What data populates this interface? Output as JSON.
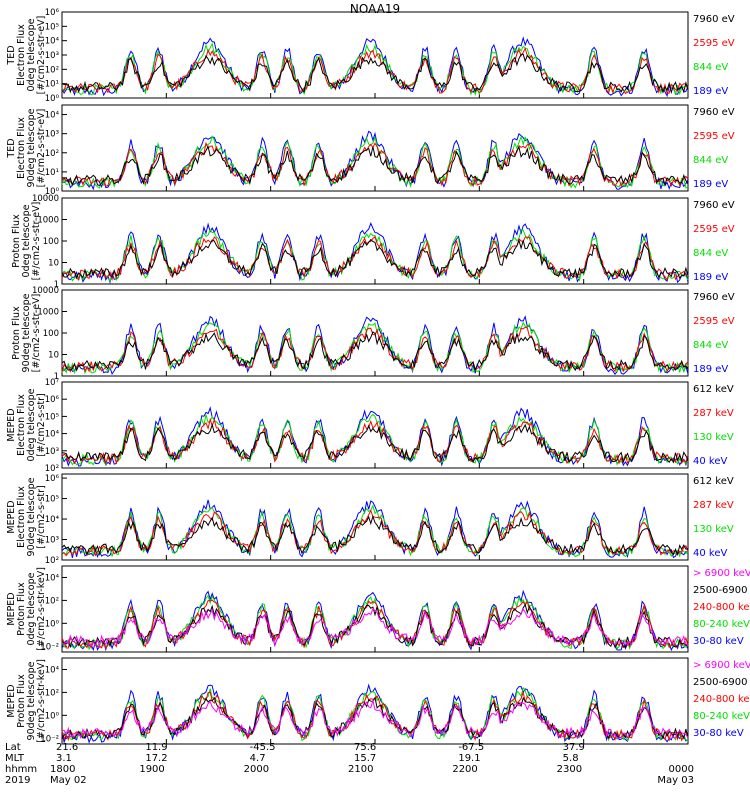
{
  "title": "NOAA19",
  "colors": {
    "black": "#000000",
    "red": "#ff0000",
    "green": "#00e000",
    "blue": "#0000ff",
    "magenta": "#ff00ff"
  },
  "panels": [
    {
      "ylabel_lines": [
        "TED",
        "Electron Flux",
        "0deg telescope",
        "[#/cm2-s-str-eV]"
      ],
      "scale": "log",
      "ticks": [
        {
          "v": 0,
          "t": "10⁰"
        },
        {
          "v": 1,
          "t": "10¹"
        },
        {
          "v": 2,
          "t": "10²"
        },
        {
          "v": 3,
          "t": "10³"
        },
        {
          "v": 4,
          "t": "10⁴"
        },
        {
          "v": 5,
          "t": "10⁵"
        },
        {
          "v": 6,
          "t": "10⁶"
        }
      ],
      "legend": [
        {
          "label": "7960 eV",
          "color": "black"
        },
        {
          "label": "2595 eV",
          "color": "red"
        },
        {
          "label": "844 eV",
          "color": "green"
        },
        {
          "label": "189 eV",
          "color": "blue"
        }
      ]
    },
    {
      "ylabel_lines": [
        "TED",
        "Electron Flux",
        "90deg telescope",
        "[#/cm2-s-str-eV]"
      ],
      "scale": "log",
      "ticks": [
        {
          "v": 0,
          "t": "10⁰"
        },
        {
          "v": 1,
          "t": "10¹"
        },
        {
          "v": 2,
          "t": "10²"
        },
        {
          "v": 3,
          "t": "10³"
        },
        {
          "v": 4,
          "t": "10⁴"
        }
      ],
      "legend": [
        {
          "label": "7960 eV",
          "color": "black"
        },
        {
          "label": "2595 eV",
          "color": "red"
        },
        {
          "label": "844 eV",
          "color": "green"
        },
        {
          "label": "189 eV",
          "color": "blue"
        }
      ]
    },
    {
      "ylabel_lines": [
        "Proton Flux",
        "0deg telescope",
        "[#/cm2-s-str-eV]"
      ],
      "scale": "log",
      "ticks": [
        {
          "v": 0,
          "t": "1"
        },
        {
          "v": 1,
          "t": "10"
        },
        {
          "v": 2,
          "t": "100"
        },
        {
          "v": 3,
          "t": "1000"
        },
        {
          "v": 4,
          "t": "10000"
        }
      ],
      "legend": [
        {
          "label": "7960 eV",
          "color": "black"
        },
        {
          "label": "2595 eV",
          "color": "red"
        },
        {
          "label": "844 eV",
          "color": "green"
        },
        {
          "label": "189 eV",
          "color": "blue"
        }
      ]
    },
    {
      "ylabel_lines": [
        "Proton Flux",
        "90deg telescope",
        "[#/cm2-s-str-eV]"
      ],
      "scale": "log",
      "ticks": [
        {
          "v": 0,
          "t": "1"
        },
        {
          "v": 1,
          "t": "10"
        },
        {
          "v": 2,
          "t": "100"
        },
        {
          "v": 3,
          "t": "1000"
        },
        {
          "v": 4,
          "t": "10000"
        }
      ],
      "legend": [
        {
          "label": "7960 eV",
          "color": "black"
        },
        {
          "label": "2595 eV",
          "color": "red"
        },
        {
          "label": "844 eV",
          "color": "green"
        },
        {
          "label": "189 eV",
          "color": "blue"
        }
      ]
    },
    {
      "ylabel_lines": [
        "MEPED",
        "Electron Flux",
        "0deg telescope",
        "[#/cm2-s-str]"
      ],
      "scale": "log",
      "ticks": [
        {
          "v": 2,
          "t": "10²"
        },
        {
          "v": 3,
          "t": "10³"
        },
        {
          "v": 4,
          "t": "10⁴"
        },
        {
          "v": 5,
          "t": "10⁵"
        },
        {
          "v": 6,
          "t": "10⁶"
        },
        {
          "v": 7,
          "t": "10⁷"
        }
      ],
      "legend": [
        {
          "label": "612 keV",
          "color": "black"
        },
        {
          "label": "287 keV",
          "color": "red"
        },
        {
          "label": "130 keV",
          "color": "green"
        },
        {
          "label": "40 keV",
          "color": "blue"
        }
      ]
    },
    {
      "ylabel_lines": [
        "MEPED",
        "Electron Flux",
        "90deg telescope",
        "[#/cm2-s-str]"
      ],
      "scale": "log",
      "ticks": [
        {
          "v": 2,
          "t": "10²"
        },
        {
          "v": 3,
          "t": "10³"
        },
        {
          "v": 4,
          "t": "10⁴"
        },
        {
          "v": 5,
          "t": "10⁵"
        },
        {
          "v": 6,
          "t": "10⁶"
        }
      ],
      "legend": [
        {
          "label": "612 keV",
          "color": "black"
        },
        {
          "label": "287 keV",
          "color": "red"
        },
        {
          "label": "130 keV",
          "color": "green"
        },
        {
          "label": "40 keV",
          "color": "blue"
        }
      ]
    },
    {
      "ylabel_lines": [
        "MEPED",
        "Proton Flux",
        "0deg telescope",
        "[#/cm2-s-str-keV]"
      ],
      "scale": "log",
      "ticks": [
        {
          "v": -2,
          "t": "10⁻²"
        },
        {
          "v": 0,
          "t": "10⁰"
        },
        {
          "v": 2,
          "t": "10²"
        },
        {
          "v": 4,
          "t": "10⁴"
        }
      ],
      "legend": [
        {
          "label": "> 6900 keV",
          "color": "magenta"
        },
        {
          "label": "2500-6900",
          "color": "black"
        },
        {
          "label": "240-800 keV",
          "color": "red"
        },
        {
          "label": "80-240 keV",
          "color": "green"
        },
        {
          "label": "30-80 keV",
          "color": "blue"
        }
      ]
    },
    {
      "ylabel_lines": [
        "MEPED",
        "Proton Flux",
        "90deg telescope",
        "[#/cm2-s-str-keV]"
      ],
      "scale": "log",
      "ticks": [
        {
          "v": -2,
          "t": "10⁻²"
        },
        {
          "v": 0,
          "t": "10⁰"
        },
        {
          "v": 2,
          "t": "10²"
        },
        {
          "v": 4,
          "t": "10⁴"
        }
      ],
      "legend": [
        {
          "label": "> 6900 keV",
          "color": "magenta"
        },
        {
          "label": "2500-6900",
          "color": "black"
        },
        {
          "label": "240-800 keV",
          "color": "red"
        },
        {
          "label": "80-240 keV",
          "color": "green"
        },
        {
          "label": "30-80 keV",
          "color": "blue"
        }
      ]
    }
  ],
  "footer": {
    "row_labels": [
      "Lat",
      "MLT",
      "hhmm",
      "2019"
    ],
    "columns": [
      {
        "lat": "21.6",
        "mlt": "3.1",
        "hhmm": "1800",
        "date": "May 02"
      },
      {
        "lat": "11.9",
        "mlt": "17.2",
        "hhmm": "1900",
        "date": ""
      },
      {
        "lat": "-45.5",
        "mlt": "4.7",
        "hhmm": "2000",
        "date": ""
      },
      {
        "lat": "75.6",
        "mlt": "15.7",
        "hhmm": "2100",
        "date": ""
      },
      {
        "lat": "-67.5",
        "mlt": "19.1",
        "hhmm": "2200",
        "date": ""
      },
      {
        "lat": "37.9",
        "mlt": "5.8",
        "hhmm": "2300",
        "date": ""
      },
      {
        "lat": "",
        "mlt": "",
        "hhmm": "0000",
        "date": "May 03"
      }
    ]
  },
  "chart_data": {
    "type": "line",
    "title": "NOAA19",
    "x_range": [
      "2019-05-02 18:00",
      "2019-05-03 00:00"
    ],
    "x_ticks": [
      "1800",
      "1900",
      "2000",
      "2100",
      "2200",
      "2300",
      "0000"
    ],
    "passes_center_hhmm": [
      "1924",
      "2057",
      "2220"
    ],
    "panels": [
      {
        "ylabel": "TED Electron Flux 0deg telescope [#/cm2-s-str-eV]",
        "ylim_log10": [
          0,
          6
        ]
      },
      {
        "ylabel": "TED Electron Flux 90deg telescope [#/cm2-s-str-eV]",
        "ylim_log10": [
          0,
          4.5
        ]
      },
      {
        "ylabel": "Proton Flux 0deg telescope [#/cm2-s-str-eV]",
        "ylim_log10": [
          0,
          4
        ]
      },
      {
        "ylabel": "Proton Flux 90deg telescope [#/cm2-s-str-eV]",
        "ylim_log10": [
          0,
          4
        ]
      },
      {
        "ylabel": "MEPED Electron Flux 0deg telescope [#/cm2-s-str]",
        "ylim_log10": [
          2,
          7
        ]
      },
      {
        "ylabel": "MEPED Electron Flux 90deg telescope [#/cm2-s-str]",
        "ylim_log10": [
          2,
          6.2
        ]
      },
      {
        "ylabel": "MEPED Proton Flux 0deg telescope [#/cm2-s-str-keV]",
        "ylim_log10": [
          -2.5,
          5
        ]
      },
      {
        "ylabel": "MEPED Proton Flux 90deg telescope [#/cm2-s-str-keV]",
        "ylim_log10": [
          -2.5,
          5
        ]
      }
    ]
  }
}
